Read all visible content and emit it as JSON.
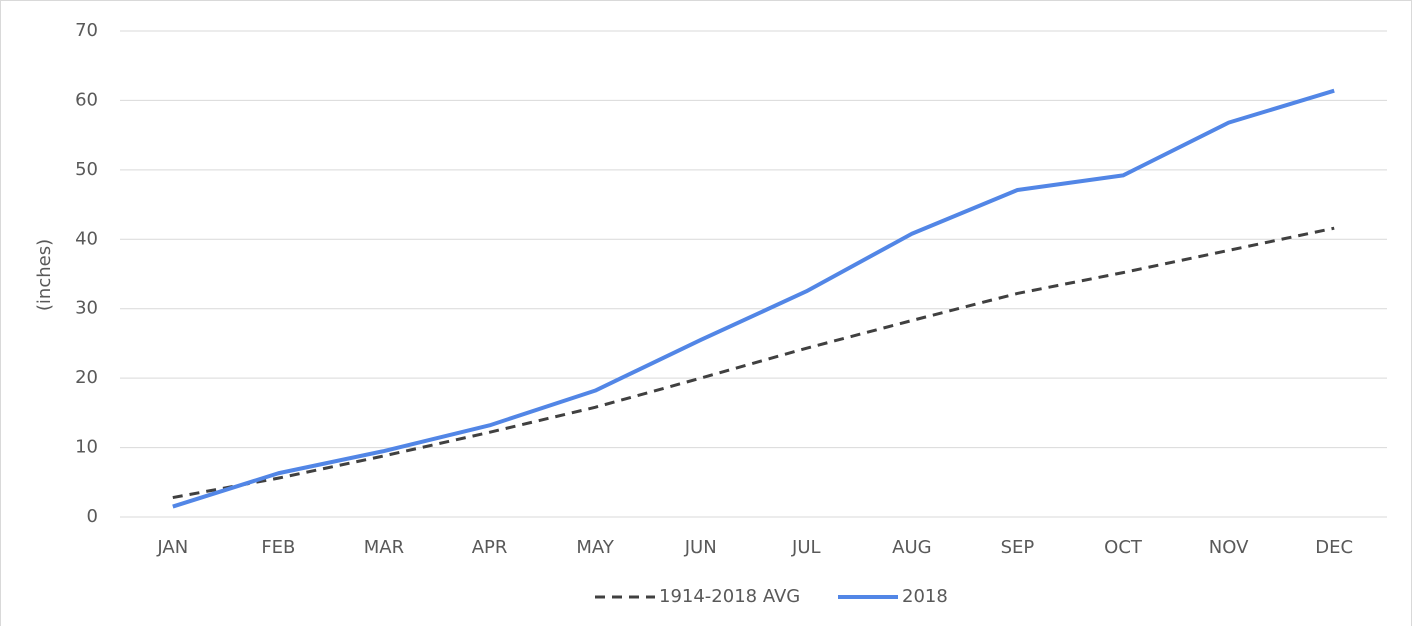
{
  "chart_data": {
    "type": "line",
    "y_label": "(inches)",
    "categories": [
      "JAN",
      "FEB",
      "MAR",
      "APR",
      "MAY",
      "JUN",
      "JUL",
      "AUG",
      "SEP",
      "OCT",
      "NOV",
      "DEC"
    ],
    "series": [
      {
        "name": "1914-2018 AVG",
        "color": "#404040",
        "dashed": true,
        "values": [
          2.8,
          5.6,
          8.8,
          12.2,
          15.8,
          20,
          24.3,
          28.3,
          32.2,
          35.2,
          38.4,
          41.6
        ]
      },
      {
        "name": "2018",
        "color": "#5286e6",
        "dashed": false,
        "values": [
          1.5,
          6.3,
          9.5,
          13.2,
          18.2,
          25.5,
          32.5,
          40.8,
          47.1,
          49.2,
          56.8,
          61.4
        ]
      }
    ],
    "ylim": [
      0,
      70
    ],
    "yticks": [
      0,
      10,
      20,
      30,
      40,
      50,
      60,
      70
    ],
    "grid": true,
    "legend": "bottom"
  }
}
